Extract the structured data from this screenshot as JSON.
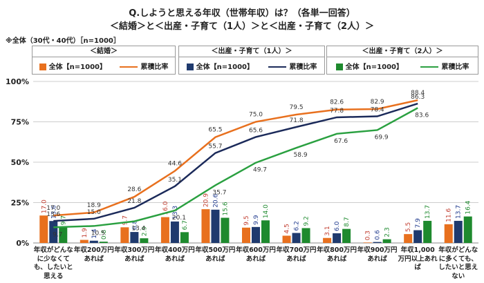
{
  "chart_data": {
    "type": "bar-line",
    "title": "Q.しようと思える年収（世帯年収）は？（各単一回答）",
    "subtitle": "＜結婚＞と＜出産・子育て（1人）＞と＜出産・子育て（2人）＞",
    "note": "※全体（30代・40代）［n=1000］",
    "categories": [
      "年収がどんなに少なくても、したいと思える",
      "年収200万円あれば",
      "年収300万円あれば",
      "年収400万円あれば",
      "年収500万円あれば",
      "年収600万円あれば",
      "年収700万円あれば",
      "年収800万円あれば",
      "年収900万円あれば",
      "年収1,000万円以上あれば",
      "年収がどんなに多くても、したいと思えない"
    ],
    "ylim": [
      0,
      100
    ],
    "yticks": [
      {
        "value": 0,
        "label": "0%"
      },
      {
        "value": 25,
        "label": "25%"
      },
      {
        "value": 50,
        "label": "50%"
      },
      {
        "value": 75,
        "label": "75%"
      },
      {
        "value": 100,
        "label": "100%"
      }
    ],
    "grid": true,
    "groups": [
      {
        "title": "＜結婚＞",
        "bar": {
          "name": "全体【n=1000】",
          "color": "#e8701e",
          "label_color": "#c0392b",
          "values": [
            17.0,
            1.9,
            9.7,
            16.0,
            20.9,
            9.5,
            4.5,
            3.1,
            0.3,
            5.5,
            11.6
          ],
          "value_labels": [
            "17.0",
            "1.9",
            "9.7",
            "16.0",
            "20.9",
            "9.5",
            "4.5",
            "3.1",
            "0.3",
            "5.5",
            "11.6"
          ]
        },
        "line": {
          "name": "累積比率",
          "color": "#e8701e",
          "values": [
            17.0,
            18.9,
            28.6,
            44.6,
            65.5,
            75.0,
            79.5,
            82.6,
            82.9,
            88.4,
            null
          ],
          "value_labels": [
            "17.0",
            "18.9",
            "28.6",
            "44.6",
            "65.5",
            "75.0",
            "79.5",
            "82.6",
            "82.9",
            "88.4",
            null
          ]
        }
      },
      {
        "title": "＜出産・子育て（1人）＞",
        "bar": {
          "name": "全体【n=1000】",
          "color": "#1f3a6e",
          "label_color": "#1f3a8e",
          "values": [
            13.6,
            1.4,
            6.8,
            13.3,
            20.6,
            9.9,
            6.2,
            6.0,
            0.6,
            7.9,
            13.7
          ],
          "value_labels": [
            "13.6",
            "1.4",
            "6.8",
            "13.3",
            "20.6",
            "9.9",
            "6.2",
            "6.0",
            "0.6",
            "7.9",
            "13.7"
          ]
        },
        "line": {
          "name": "累積比率",
          "color": "#1b2a5a",
          "values": [
            13.6,
            15.0,
            21.8,
            35.1,
            55.7,
            65.6,
            71.8,
            77.8,
            78.4,
            86.3,
            null
          ],
          "value_labels": [
            "13.6",
            "15.0",
            "21.8",
            "35.1",
            "55.7",
            "65.6",
            "71.8",
            "77.8",
            "78.4",
            "86.3",
            null
          ]
        }
      },
      {
        "title": "＜出産・子育て（2人）＞",
        "bar": {
          "name": "全体【n=1000】",
          "color": "#1e8a2e",
          "label_color": "#1e8a2e",
          "values": [
            9.7,
            0.8,
            2.9,
            6.7,
            15.6,
            14.0,
            9.2,
            8.7,
            2.3,
            13.7,
            16.4
          ],
          "value_labels": [
            "9.7",
            "0.8",
            "2.9",
            "6.7",
            "15.6",
            "14.0",
            "9.2",
            "8.7",
            "2.3",
            "13.7",
            "16.4"
          ]
        },
        "line": {
          "name": "累積比率",
          "color": "#2aa040",
          "values": [
            9.7,
            10.5,
            13.4,
            20.1,
            35.7,
            49.7,
            58.9,
            67.6,
            69.9,
            83.6,
            null
          ],
          "value_labels": [
            "9.7",
            "10.5",
            "13.4",
            "20.1",
            "35.7",
            "49.7",
            "58.9",
            "67.6",
            "69.9",
            "83.6",
            null
          ]
        }
      }
    ]
  }
}
